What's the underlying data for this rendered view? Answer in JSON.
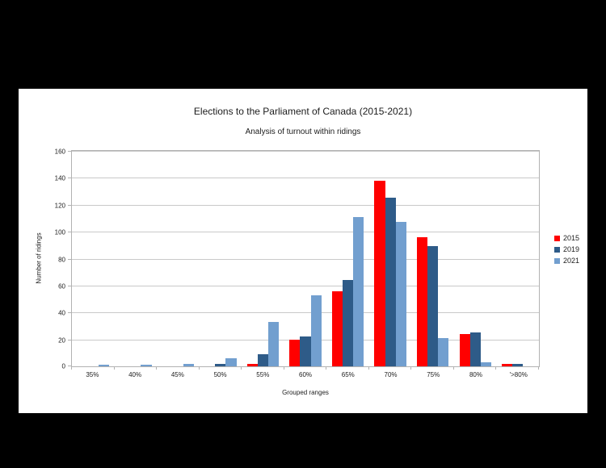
{
  "page": {
    "background": "#000000",
    "panel_background": "#ffffff"
  },
  "colors": {
    "series_2015": "#ff0000",
    "series_2019": "#2e5b88",
    "series_2021": "#729fcf",
    "gridline": "#c9c9c9",
    "plot_border": "#b2b2b2",
    "text": "#1c1c1c"
  },
  "chart_data": {
    "type": "bar",
    "title": "Elections to the Parliament of Canada (2015-2021)",
    "subtitle": "Analysis of turnout within ridings",
    "xlabel": "Grouped ranges",
    "ylabel": "Number of ridings",
    "categories": [
      "35%",
      "40%",
      "45%",
      "50%",
      "55%",
      "60%",
      "65%",
      "70%",
      "75%",
      "80%",
      "'>80%"
    ],
    "series": [
      {
        "name": "2015",
        "color": "#ff0000",
        "values": [
          0,
          0,
          0,
          0,
          2,
          20,
          56,
          138,
          96,
          24,
          2
        ]
      },
      {
        "name": "2019",
        "color": "#2e5b88",
        "values": [
          0,
          0,
          0,
          2,
          9,
          22,
          64,
          125,
          89,
          25,
          2
        ]
      },
      {
        "name": "2021",
        "color": "#729fcf",
        "values": [
          1,
          1,
          2,
          6,
          33,
          53,
          111,
          107,
          21,
          3,
          0
        ]
      }
    ],
    "ylim": [
      0,
      160
    ],
    "yticks": [
      0,
      20,
      40,
      60,
      80,
      100,
      120,
      140,
      160
    ],
    "grid": true,
    "legend_position": "right"
  }
}
